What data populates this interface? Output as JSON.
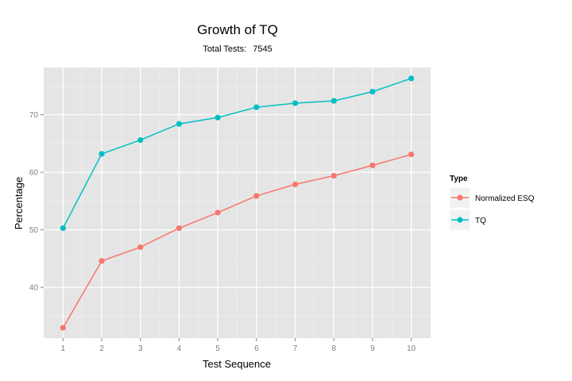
{
  "chart_data": {
    "type": "line",
    "title": "Growth of TQ",
    "subtitle_label": "Total Tests:",
    "subtitle_value": "7545",
    "xlabel": "Test Sequence",
    "ylabel": "Percentage",
    "x": [
      1,
      2,
      3,
      4,
      5,
      6,
      7,
      8,
      9,
      10
    ],
    "xlim": [
      0.5,
      10.5
    ],
    "ylim": [
      31.2,
      78.2
    ],
    "yticks": [
      40,
      50,
      60,
      70
    ],
    "grid": true,
    "legend_position": "right",
    "legend_title": "Type",
    "series": [
      {
        "name": "Normalized ESQ",
        "color": "#F8766D",
        "values": [
          33.0,
          44.6,
          47.0,
          50.3,
          53.0,
          55.9,
          57.9,
          59.4,
          61.2,
          63.1
        ]
      },
      {
        "name": "TQ",
        "color": "#00BFC4",
        "values": [
          50.3,
          63.2,
          65.6,
          68.4,
          69.5,
          71.3,
          72.0,
          72.4,
          74.0,
          76.3
        ]
      }
    ]
  }
}
